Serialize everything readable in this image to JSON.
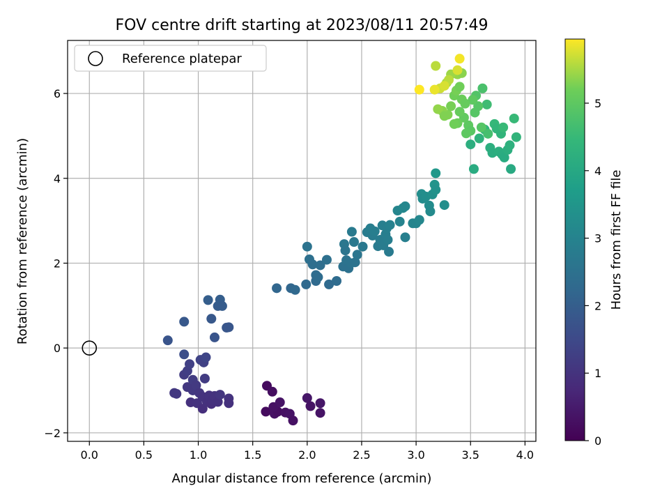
{
  "chart_data": {
    "type": "scatter",
    "title": "FOV centre drift starting at 2023/08/11 20:57:49",
    "xlabel": "Angular distance from reference (arcmin)",
    "ylabel": "Rotation from reference (arcmin)",
    "xlim": [
      -0.2,
      4.1
    ],
    "ylim": [
      -2.2,
      7.25
    ],
    "xticks": [
      0.0,
      0.5,
      1.0,
      1.5,
      2.0,
      2.5,
      3.0,
      3.5,
      4.0
    ],
    "xtick_labels": [
      "0.0",
      "0.5",
      "1.0",
      "1.5",
      "2.0",
      "2.5",
      "3.0",
      "3.5",
      "4.0"
    ],
    "yticks": [
      -2,
      0,
      2,
      4,
      6
    ],
    "ytick_labels": [
      "−2",
      "0",
      "2",
      "4",
      "6"
    ],
    "grid": true,
    "legend": {
      "position": "top-left",
      "entries": [
        "Reference platepar"
      ]
    },
    "reference_point": {
      "x": 0.0,
      "y": 0.0
    },
    "colorbar": {
      "label": "Hours from first FF file",
      "colormap": "viridis",
      "range": [
        0,
        5.95
      ],
      "ticks": [
        0,
        1,
        2,
        3,
        4,
        5
      ],
      "tick_labels": [
        "0",
        "1",
        "2",
        "3",
        "4",
        "5"
      ]
    },
    "points": [
      {
        "x": 1.63,
        "y": -0.89,
        "h": 0.2
      },
      {
        "x": 1.68,
        "y": -1.03,
        "h": 0.25
      },
      {
        "x": 1.62,
        "y": -1.5,
        "h": 0.2
      },
      {
        "x": 1.7,
        "y": -1.55,
        "h": 0.3
      },
      {
        "x": 1.73,
        "y": -1.5,
        "h": 0.25
      },
      {
        "x": 1.69,
        "y": -1.39,
        "h": 0.3
      },
      {
        "x": 1.75,
        "y": -1.28,
        "h": 0.35
      },
      {
        "x": 1.8,
        "y": -1.52,
        "h": 0.3
      },
      {
        "x": 1.84,
        "y": -1.55,
        "h": 0.35
      },
      {
        "x": 1.87,
        "y": -1.71,
        "h": 0.3
      },
      {
        "x": 2.0,
        "y": -1.18,
        "h": 0.4
      },
      {
        "x": 2.03,
        "y": -1.37,
        "h": 0.35
      },
      {
        "x": 2.12,
        "y": -1.3,
        "h": 0.4
      },
      {
        "x": 2.12,
        "y": -1.53,
        "h": 0.35
      },
      {
        "x": 0.78,
        "y": -1.06,
        "h": 1.1
      },
      {
        "x": 0.8,
        "y": -1.08,
        "h": 1.1
      },
      {
        "x": 0.87,
        "y": -0.63,
        "h": 1.2
      },
      {
        "x": 0.9,
        "y": -0.54,
        "h": 1.25
      },
      {
        "x": 0.92,
        "y": -0.38,
        "h": 1.3
      },
      {
        "x": 0.9,
        "y": -0.92,
        "h": 1.1
      },
      {
        "x": 0.95,
        "y": -0.75,
        "h": 1.2
      },
      {
        "x": 0.95,
        "y": -1.0,
        "h": 1.1
      },
      {
        "x": 0.93,
        "y": -1.28,
        "h": 0.95
      },
      {
        "x": 0.98,
        "y": -0.88,
        "h": 1.15
      },
      {
        "x": 0.99,
        "y": -1.3,
        "h": 1.0
      },
      {
        "x": 1.01,
        "y": -1.06,
        "h": 1.05
      },
      {
        "x": 1.02,
        "y": -0.28,
        "h": 1.35
      },
      {
        "x": 1.04,
        "y": -1.15,
        "h": 1.0
      },
      {
        "x": 1.05,
        "y": -0.34,
        "h": 1.3
      },
      {
        "x": 1.07,
        "y": -0.22,
        "h": 1.4
      },
      {
        "x": 1.06,
        "y": -0.72,
        "h": 1.2
      },
      {
        "x": 1.04,
        "y": -1.43,
        "h": 0.9
      },
      {
        "x": 1.08,
        "y": -1.27,
        "h": 0.95
      },
      {
        "x": 1.1,
        "y": -1.12,
        "h": 1.0
      },
      {
        "x": 1.12,
        "y": -1.32,
        "h": 0.9
      },
      {
        "x": 1.13,
        "y": -1.22,
        "h": 0.95
      },
      {
        "x": 1.15,
        "y": -1.13,
        "h": 1.0
      },
      {
        "x": 1.18,
        "y": -1.27,
        "h": 0.95
      },
      {
        "x": 1.2,
        "y": -1.1,
        "h": 1.05
      },
      {
        "x": 1.28,
        "y": -1.19,
        "h": 1.0
      },
      {
        "x": 1.28,
        "y": -1.3,
        "h": 0.95
      },
      {
        "x": 0.72,
        "y": 0.18,
        "h": 1.75
      },
      {
        "x": 0.87,
        "y": 0.62,
        "h": 1.85
      },
      {
        "x": 0.87,
        "y": -0.15,
        "h": 1.6
      },
      {
        "x": 1.09,
        "y": 1.13,
        "h": 2.0
      },
      {
        "x": 1.12,
        "y": 0.69,
        "h": 1.85
      },
      {
        "x": 1.15,
        "y": 0.25,
        "h": 1.75
      },
      {
        "x": 1.18,
        "y": 0.99,
        "h": 1.95
      },
      {
        "x": 1.2,
        "y": 1.14,
        "h": 2.0
      },
      {
        "x": 1.22,
        "y": 0.99,
        "h": 1.95
      },
      {
        "x": 1.26,
        "y": 0.48,
        "h": 1.8
      },
      {
        "x": 1.28,
        "y": 0.49,
        "h": 1.8
      },
      {
        "x": 1.72,
        "y": 1.41,
        "h": 2.2
      },
      {
        "x": 1.85,
        "y": 1.41,
        "h": 2.2
      },
      {
        "x": 1.89,
        "y": 1.37,
        "h": 2.25
      },
      {
        "x": 1.99,
        "y": 1.5,
        "h": 2.3
      },
      {
        "x": 2.0,
        "y": 2.39,
        "h": 2.55
      },
      {
        "x": 2.02,
        "y": 2.09,
        "h": 2.45
      },
      {
        "x": 2.05,
        "y": 1.97,
        "h": 2.4
      },
      {
        "x": 2.08,
        "y": 1.72,
        "h": 2.35
      },
      {
        "x": 2.08,
        "y": 1.58,
        "h": 2.3
      },
      {
        "x": 2.1,
        "y": 1.67,
        "h": 2.35
      },
      {
        "x": 2.12,
        "y": 1.95,
        "h": 2.4
      },
      {
        "x": 2.18,
        "y": 2.08,
        "h": 2.45
      },
      {
        "x": 2.2,
        "y": 1.5,
        "h": 2.3
      },
      {
        "x": 2.27,
        "y": 1.58,
        "h": 2.35
      },
      {
        "x": 2.33,
        "y": 1.92,
        "h": 2.5
      },
      {
        "x": 2.34,
        "y": 2.45,
        "h": 2.65
      },
      {
        "x": 2.35,
        "y": 2.3,
        "h": 2.6
      },
      {
        "x": 2.36,
        "y": 2.07,
        "h": 2.55
      },
      {
        "x": 2.38,
        "y": 1.88,
        "h": 2.5
      },
      {
        "x": 2.4,
        "y": 2.0,
        "h": 2.55
      },
      {
        "x": 2.41,
        "y": 2.74,
        "h": 2.75
      },
      {
        "x": 2.43,
        "y": 2.5,
        "h": 2.7
      },
      {
        "x": 2.44,
        "y": 2.02,
        "h": 2.55
      },
      {
        "x": 2.46,
        "y": 2.2,
        "h": 2.6
      },
      {
        "x": 2.51,
        "y": 2.39,
        "h": 2.7
      },
      {
        "x": 2.55,
        "y": 2.73,
        "h": 2.8
      },
      {
        "x": 2.58,
        "y": 2.82,
        "h": 2.85
      },
      {
        "x": 2.6,
        "y": 2.65,
        "h": 2.8
      },
      {
        "x": 2.62,
        "y": 2.75,
        "h": 2.85
      },
      {
        "x": 2.65,
        "y": 2.4,
        "h": 2.75
      },
      {
        "x": 2.67,
        "y": 2.55,
        "h": 2.8
      },
      {
        "x": 2.69,
        "y": 2.89,
        "h": 2.9
      },
      {
        "x": 2.7,
        "y": 2.42,
        "h": 2.8
      },
      {
        "x": 2.72,
        "y": 2.68,
        "h": 2.85
      },
      {
        "x": 2.73,
        "y": 2.82,
        "h": 2.9
      },
      {
        "x": 2.74,
        "y": 2.55,
        "h": 2.85
      },
      {
        "x": 2.75,
        "y": 2.27,
        "h": 2.75
      },
      {
        "x": 2.76,
        "y": 2.9,
        "h": 2.95
      },
      {
        "x": 2.83,
        "y": 3.24,
        "h": 3.05
      },
      {
        "x": 2.85,
        "y": 2.98,
        "h": 3.0
      },
      {
        "x": 2.88,
        "y": 3.3,
        "h": 3.1
      },
      {
        "x": 2.9,
        "y": 3.34,
        "h": 3.1
      },
      {
        "x": 2.9,
        "y": 2.61,
        "h": 2.9
      },
      {
        "x": 2.97,
        "y": 2.94,
        "h": 3.05
      },
      {
        "x": 3.0,
        "y": 2.94,
        "h": 3.05
      },
      {
        "x": 3.03,
        "y": 3.02,
        "h": 3.1
      },
      {
        "x": 3.05,
        "y": 3.63,
        "h": 3.3
      },
      {
        "x": 3.06,
        "y": 3.52,
        "h": 3.25
      },
      {
        "x": 3.09,
        "y": 3.57,
        "h": 3.3
      },
      {
        "x": 3.12,
        "y": 3.36,
        "h": 3.25
      },
      {
        "x": 3.13,
        "y": 3.22,
        "h": 3.2
      },
      {
        "x": 3.15,
        "y": 3.62,
        "h": 3.35
      },
      {
        "x": 3.17,
        "y": 3.85,
        "h": 3.45
      },
      {
        "x": 3.18,
        "y": 3.73,
        "h": 3.4
      },
      {
        "x": 3.18,
        "y": 4.12,
        "h": 3.55
      },
      {
        "x": 3.26,
        "y": 3.37,
        "h": 3.3
      },
      {
        "x": 3.5,
        "y": 4.8,
        "h": 4.2
      },
      {
        "x": 3.53,
        "y": 4.22,
        "h": 4.1
      },
      {
        "x": 3.58,
        "y": 4.94,
        "h": 4.3
      },
      {
        "x": 3.63,
        "y": 5.15,
        "h": 4.4
      },
      {
        "x": 3.65,
        "y": 5.74,
        "h": 4.6
      },
      {
        "x": 3.68,
        "y": 4.72,
        "h": 4.2
      },
      {
        "x": 3.7,
        "y": 4.6,
        "h": 4.15
      },
      {
        "x": 3.72,
        "y": 5.28,
        "h": 4.45
      },
      {
        "x": 3.74,
        "y": 5.17,
        "h": 4.4
      },
      {
        "x": 3.76,
        "y": 4.63,
        "h": 4.2
      },
      {
        "x": 3.78,
        "y": 5.05,
        "h": 4.35
      },
      {
        "x": 3.79,
        "y": 4.56,
        "h": 4.15
      },
      {
        "x": 3.81,
        "y": 4.49,
        "h": 4.1
      },
      {
        "x": 3.84,
        "y": 4.67,
        "h": 4.2
      },
      {
        "x": 3.86,
        "y": 4.78,
        "h": 4.25
      },
      {
        "x": 3.87,
        "y": 4.22,
        "h": 4.05
      },
      {
        "x": 3.9,
        "y": 5.41,
        "h": 4.5
      },
      {
        "x": 3.92,
        "y": 4.97,
        "h": 4.35
      },
      {
        "x": 3.61,
        "y": 6.12,
        "h": 4.75
      },
      {
        "x": 3.55,
        "y": 5.95,
        "h": 4.85
      },
      {
        "x": 3.57,
        "y": 5.7,
        "h": 4.9
      },
      {
        "x": 3.48,
        "y": 5.25,
        "h": 5.0
      },
      {
        "x": 3.5,
        "y": 5.12,
        "h": 4.95
      },
      {
        "x": 3.54,
        "y": 5.55,
        "h": 4.9
      },
      {
        "x": 3.46,
        "y": 5.06,
        "h": 5.0
      },
      {
        "x": 3.44,
        "y": 5.43,
        "h": 5.05
      },
      {
        "x": 3.4,
        "y": 5.57,
        "h": 5.1
      },
      {
        "x": 3.38,
        "y": 5.3,
        "h": 5.15
      },
      {
        "x": 3.35,
        "y": 5.28,
        "h": 5.2
      },
      {
        "x": 3.52,
        "y": 5.85,
        "h": 5.0
      },
      {
        "x": 3.6,
        "y": 5.2,
        "h": 4.9
      },
      {
        "x": 3.66,
        "y": 5.05,
        "h": 4.7
      },
      {
        "x": 3.8,
        "y": 5.2,
        "h": 4.5
      },
      {
        "x": 3.29,
        "y": 5.5,
        "h": 5.3
      },
      {
        "x": 3.24,
        "y": 5.59,
        "h": 5.35
      },
      {
        "x": 3.2,
        "y": 5.63,
        "h": 5.4
      },
      {
        "x": 3.26,
        "y": 5.47,
        "h": 5.3
      },
      {
        "x": 3.32,
        "y": 5.7,
        "h": 5.25
      },
      {
        "x": 3.35,
        "y": 5.95,
        "h": 5.2
      },
      {
        "x": 3.37,
        "y": 6.07,
        "h": 5.25
      },
      {
        "x": 3.4,
        "y": 6.16,
        "h": 5.2
      },
      {
        "x": 3.42,
        "y": 5.86,
        "h": 5.15
      },
      {
        "x": 3.45,
        "y": 5.76,
        "h": 5.1
      },
      {
        "x": 3.38,
        "y": 6.45,
        "h": 5.4
      },
      {
        "x": 3.42,
        "y": 6.48,
        "h": 5.35
      },
      {
        "x": 3.32,
        "y": 6.45,
        "h": 5.45
      },
      {
        "x": 3.28,
        "y": 6.25,
        "h": 5.5
      },
      {
        "x": 3.18,
        "y": 6.65,
        "h": 5.6
      },
      {
        "x": 3.3,
        "y": 6.32,
        "h": 5.6
      },
      {
        "x": 3.22,
        "y": 6.12,
        "h": 5.7
      },
      {
        "x": 3.26,
        "y": 6.18,
        "h": 5.75
      },
      {
        "x": 3.17,
        "y": 6.09,
        "h": 5.85
      },
      {
        "x": 3.03,
        "y": 6.09,
        "h": 5.95
      },
      {
        "x": 3.4,
        "y": 6.82,
        "h": 5.9
      },
      {
        "x": 3.38,
        "y": 6.55,
        "h": 5.75
      }
    ]
  }
}
